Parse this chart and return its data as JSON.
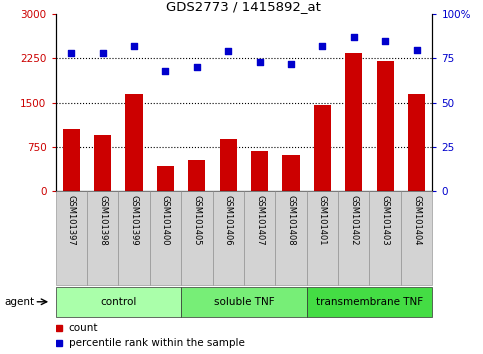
{
  "title": "GDS2773 / 1415892_at",
  "samples": [
    "GSM101397",
    "GSM101398",
    "GSM101399",
    "GSM101400",
    "GSM101405",
    "GSM101406",
    "GSM101407",
    "GSM101408",
    "GSM101401",
    "GSM101402",
    "GSM101403",
    "GSM101404"
  ],
  "bar_values": [
    1050,
    950,
    1650,
    430,
    530,
    880,
    680,
    620,
    1460,
    2350,
    2200,
    1650
  ],
  "scatter_values": [
    78,
    78,
    82,
    68,
    70,
    79,
    73,
    72,
    82,
    87,
    85,
    80
  ],
  "bar_color": "#cc0000",
  "scatter_color": "#0000cc",
  "ylim_left": [
    0,
    3000
  ],
  "ylim_right": [
    0,
    100
  ],
  "yticks_left": [
    0,
    750,
    1500,
    2250,
    3000
  ],
  "yticks_right": [
    0,
    25,
    50,
    75,
    100
  ],
  "ytick_labels_right": [
    "0",
    "25",
    "50",
    "75",
    "100%"
  ],
  "groups": [
    {
      "label": "control",
      "start": 0,
      "end": 4,
      "color": "#aaffaa"
    },
    {
      "label": "soluble TNF",
      "start": 4,
      "end": 8,
      "color": "#77ee77"
    },
    {
      "label": "transmembrane TNF",
      "start": 8,
      "end": 12,
      "color": "#44dd44"
    }
  ],
  "agent_label": "agent",
  "grid_lines": [
    750,
    1500,
    2250
  ],
  "legend_items": [
    {
      "label": "count",
      "color": "#cc0000"
    },
    {
      "label": "percentile rank within the sample",
      "color": "#0000cc"
    }
  ]
}
